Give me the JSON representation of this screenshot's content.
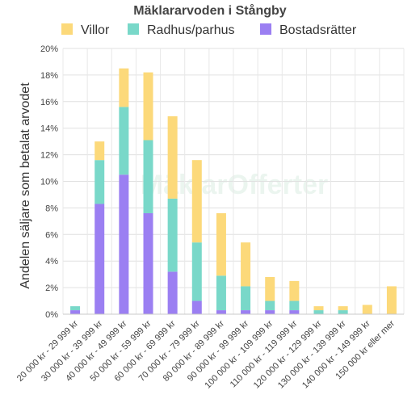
{
  "chart_data": {
    "type": "bar",
    "stacked": true,
    "title": "Mäklararvoden i Stångby",
    "ylabel": "Andelen säljare som betalat arvodet",
    "xlabel": "",
    "ylim": [
      0,
      20
    ],
    "yticks": [
      0,
      2,
      4,
      6,
      8,
      10,
      12,
      14,
      16,
      18,
      20
    ],
    "ytick_labels": [
      "0%",
      "2%",
      "4%",
      "6%",
      "8%",
      "10%",
      "12%",
      "14%",
      "16%",
      "18%",
      "20%"
    ],
    "grid": true,
    "legend_position": "top",
    "watermark": "MäklarOfferter",
    "categories": [
      "20 000 kr - 29 999 kr",
      "30 000 kr - 39 999 kr",
      "40 000 kr - 49 999 kr",
      "50 000 kr - 59 999 kr",
      "60 000 kr - 69 999 kr",
      "70 000 kr - 79 999 kr",
      "80 000 kr - 89 999 kr",
      "90 000 kr - 99 999 kr",
      "100 000 kr - 109 999 kr",
      "110 000 kr - 119 999 kr",
      "120 000 kr - 129 999 kr",
      "130 000 kr - 139 999 kr",
      "140 000 kr - 149 999 kr",
      "150 000 kr eller mer"
    ],
    "series": [
      {
        "name": "Bostadsrätter",
        "color": "#9b7ff2",
        "values": [
          0.3,
          8.3,
          10.5,
          7.6,
          3.2,
          1.0,
          0.3,
          0.3,
          0.3,
          0.3,
          0,
          0,
          0,
          0
        ]
      },
      {
        "name": "Radhus/parhus",
        "color": "#79d8c9",
        "values": [
          0.3,
          3.3,
          5.1,
          5.5,
          5.5,
          4.4,
          2.6,
          1.8,
          0.7,
          0.7,
          0.3,
          0.3,
          0,
          0
        ]
      },
      {
        "name": "Villor",
        "color": "#fcd97a",
        "values": [
          0,
          1.4,
          2.9,
          5.1,
          6.2,
          6.2,
          4.7,
          3.3,
          1.8,
          1.5,
          0.3,
          0.3,
          0.7,
          2.1
        ]
      }
    ],
    "legend_order": [
      "Villor",
      "Radhus/parhus",
      "Bostadsrätter"
    ]
  }
}
